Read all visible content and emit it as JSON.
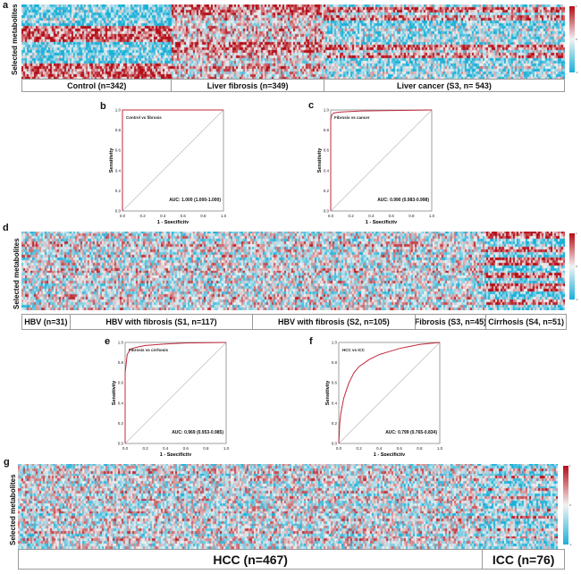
{
  "panels": {
    "a": {
      "letter": "a",
      "ylabel": "Selected metabolites",
      "groups": [
        {
          "label": "Control (n=342)"
        },
        {
          "label": "Liver fibrosis (n=349)"
        },
        {
          "label": "Liver cancer (S3, n= 543)"
        }
      ]
    },
    "b": {
      "letter": "b",
      "title": "Control vs fibrosis",
      "auc": "AUC: 1.000 (1.000-1.000)"
    },
    "c": {
      "letter": "c",
      "title": "Fibrosis vs cancer",
      "auc": "AUC: 0.990 (0.983-0.998)"
    },
    "d": {
      "letter": "d",
      "ylabel": "Selected metabolites",
      "groups": [
        {
          "label": "HBV (n=31)"
        },
        {
          "label": "HBV with fibrosis (S1, n=117)"
        },
        {
          "label": "HBV with fibrosis (S2, n=105)"
        },
        {
          "label": "Fibrosis (S3, n=45)"
        },
        {
          "label": "Cirrhosis (S4, n=51)"
        }
      ]
    },
    "e": {
      "letter": "e",
      "title": "Fibrosis vs cirrhosis",
      "auc": "AUC: 0.969 (0.953-0.985)"
    },
    "f": {
      "letter": "f",
      "title": "HCC vs ICC",
      "auc": "AUC: 0.799 (0.765-0.834)"
    },
    "g": {
      "letter": "g",
      "ylabel": "Selected metabolites",
      "groups": [
        {
          "label": "HCC (n=467)"
        },
        {
          "label": "ICC (n=76)"
        }
      ]
    }
  },
  "roc_axes": {
    "xlabel": "1 - Specificity",
    "ylabel": "Sensitivity",
    "ticks": [
      "0.0",
      "0.2",
      "0.4",
      "0.6",
      "0.8",
      "1.0"
    ]
  },
  "colorbar_ticks": [
    "1",
    "0",
    "-1"
  ],
  "colors": {
    "high": "#b40c16",
    "mid": "#f2f2f2",
    "low": "#1ab0d8",
    "roc_line": "#c0283c",
    "diag": "#bbbbbb"
  },
  "chart_data": [
    {
      "type": "line",
      "panel": "b",
      "title": "Control vs fibrosis",
      "xlabel": "1 - Specificity",
      "ylabel": "Sensitivity",
      "xlim": [
        0,
        1
      ],
      "ylim": [
        0,
        1
      ],
      "series": [
        {
          "x": [
            0,
            0,
            1
          ],
          "y": [
            0,
            1,
            1
          ]
        }
      ]
    },
    {
      "type": "line",
      "panel": "c",
      "title": "Fibrosis vs cancer",
      "xlabel": "1 - Specificity",
      "ylabel": "Sensitivity",
      "xlim": [
        0,
        1
      ],
      "ylim": [
        0,
        1
      ],
      "series": [
        {
          "x": [
            0,
            0.0,
            0.01,
            0.03,
            0.1,
            0.3,
            1.0
          ],
          "y": [
            0,
            0.9,
            0.95,
            0.97,
            0.98,
            0.99,
            1.0
          ]
        }
      ]
    },
    {
      "type": "line",
      "panel": "e",
      "title": "Fibrosis vs cirrhosis",
      "xlabel": "1 - Specificity",
      "ylabel": "Sensitivity",
      "xlim": [
        0,
        1
      ],
      "ylim": [
        0,
        1
      ],
      "series": [
        {
          "x": [
            0,
            0.0,
            0.02,
            0.05,
            0.1,
            0.2,
            0.4,
            0.6,
            1.0
          ],
          "y": [
            0,
            0.7,
            0.88,
            0.93,
            0.95,
            0.97,
            0.985,
            0.995,
            1.0
          ]
        }
      ]
    },
    {
      "type": "line",
      "panel": "f",
      "title": "HCC vs ICC",
      "xlabel": "1 - Specificity",
      "ylabel": "Sensitivity",
      "xlim": [
        0,
        1
      ],
      "ylim": [
        0,
        1
      ],
      "series": [
        {
          "x": [
            0,
            0.01,
            0.02,
            0.05,
            0.1,
            0.15,
            0.2,
            0.3,
            0.4,
            0.5,
            0.6,
            0.7,
            0.8,
            0.9,
            1.0
          ],
          "y": [
            0,
            0.2,
            0.3,
            0.45,
            0.6,
            0.7,
            0.76,
            0.83,
            0.88,
            0.91,
            0.94,
            0.96,
            0.98,
            0.99,
            1.0
          ]
        }
      ]
    }
  ]
}
